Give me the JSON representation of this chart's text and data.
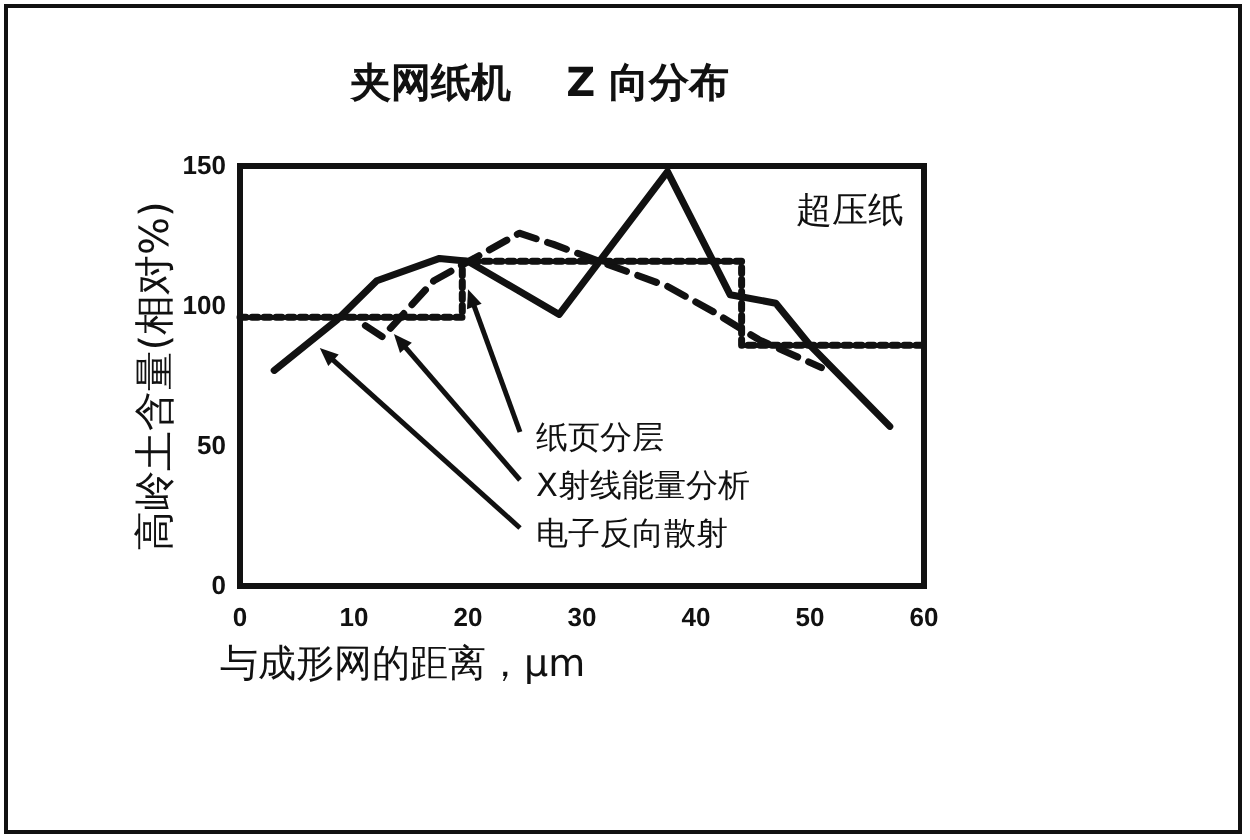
{
  "chart_data": {
    "type": "line",
    "title": "夹网纸机    Z 向分布",
    "xlabel": "与成形网的距离，μm",
    "ylabel": "高岭土含量(相对%)",
    "xlim": [
      0,
      60
    ],
    "xticks": [
      0,
      10,
      20,
      30,
      40,
      50,
      60
    ],
    "ylim": [
      0,
      150
    ],
    "yticks": [
      0,
      50,
      100,
      150
    ],
    "grid": false,
    "marker": "none",
    "series": [
      {
        "color": "#111111",
        "line_style": "solid",
        "x": [
          3,
          8.5,
          12,
          17.5,
          20,
          28,
          37.5,
          43,
          47,
          50,
          57
        ],
        "values": [
          77,
          95,
          109,
          117,
          116,
          97,
          148,
          104,
          101,
          86,
          57
        ]
      },
      {
        "color": "#111111",
        "line_style": "dashed",
        "x": [
          11,
          12.5,
          17,
          24.5,
          27.5,
          37.5,
          41.5,
          45.5,
          51
        ],
        "values": [
          93,
          89,
          109,
          126,
          122,
          107,
          98,
          88,
          78
        ]
      },
      {
        "color": "#111111",
        "line_style": "dotted",
        "x": [
          0,
          19.5,
          19.5,
          44,
          44,
          60
        ],
        "values": [
          96,
          96,
          116,
          116,
          86,
          86
        ]
      }
    ],
    "annotations": [
      "超压纸",
      {
        "text": "纸页分层",
        "x": 20,
        "y": 106
      },
      {
        "text": "X射线能量分析",
        "x": 13.5,
        "y": 90
      },
      {
        "text": "电子反向散射",
        "x": 7,
        "y": 85
      }
    ]
  }
}
